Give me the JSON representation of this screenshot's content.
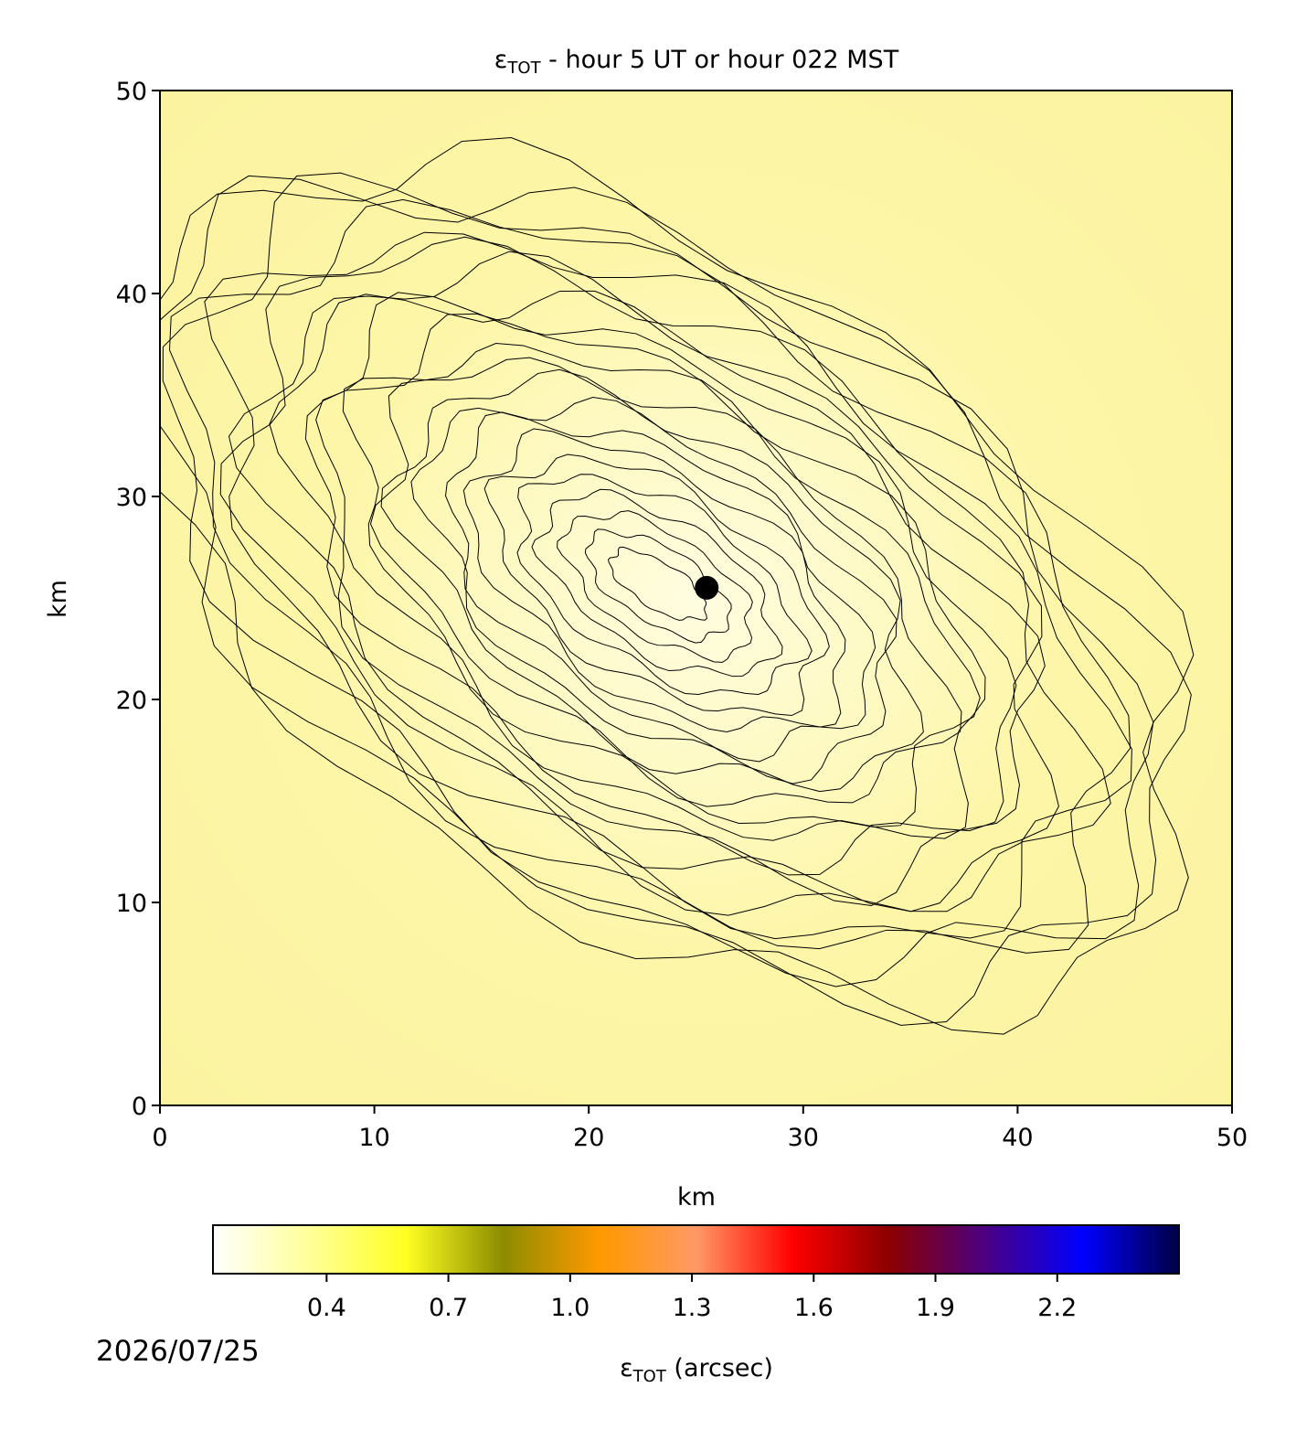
{
  "chart_data": {
    "type": "scatter",
    "title": {
      "symbol": "ε",
      "subscript": "TOT",
      "text": " - hour 5 UT or hour 022 MST"
    },
    "xlabel": "km",
    "ylabel": "km",
    "xlim": [
      0,
      50
    ],
    "ylim": [
      0,
      50
    ],
    "xticks": [
      0,
      10,
      20,
      30,
      40,
      50
    ],
    "yticks": [
      0,
      10,
      20,
      30,
      40,
      50
    ],
    "series": [
      {
        "x": [
          25.5
        ],
        "values": [
          25.5
        ],
        "color": "#000000"
      }
    ],
    "colorbar": {
      "lim": [
        0.12,
        2.5
      ],
      "ticks": [
        0.4,
        0.7,
        {
          "value": 1,
          "label": "1.0"
        },
        1.3,
        1.6,
        1.9,
        2.2
      ],
      "colors": [
        "#ffffff",
        "#ffff99",
        "#ffff22",
        "#8c8c00",
        "#ff9900",
        "#ff9966",
        "#ff0000",
        "#8b0000",
        "#4b0082",
        "#0000ff",
        "#000044"
      ],
      "label": {
        "symbol": "ε",
        "subscript": "TOT",
        "text": " (arcsec)"
      }
    },
    "date": "2026/07/25"
  }
}
